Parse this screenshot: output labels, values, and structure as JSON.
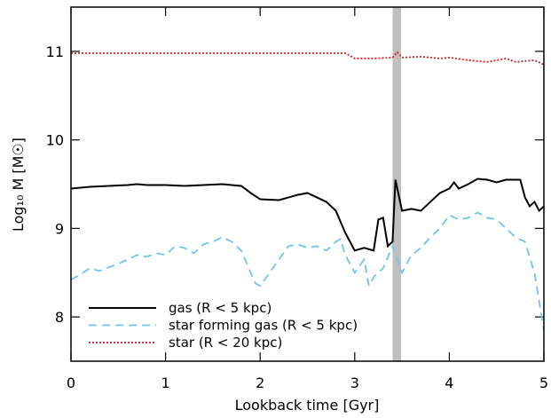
{
  "chart_data": {
    "type": "line",
    "xlabel": "Lookback time [Gyr]",
    "ylabel": "Log₁₀ M [M☉]",
    "xlim": [
      0,
      5
    ],
    "xticks": [
      0,
      1,
      2,
      3,
      4,
      5
    ],
    "ylim": [
      7.5,
      11.5
    ],
    "yticks": [
      8,
      9,
      10,
      11
    ],
    "highlight": {
      "x": [
        3.4,
        3.49
      ],
      "color": "#bfbfbf"
    },
    "legend": "lower left",
    "series": [
      {
        "name": "gas (R < 5 kpc)",
        "color": "#000000",
        "dash": "solid",
        "x": [
          0,
          0.2,
          0.4,
          0.6,
          0.7,
          0.8,
          1.0,
          1.2,
          1.4,
          1.6,
          1.8,
          1.9,
          2.0,
          2.2,
          2.4,
          2.5,
          2.6,
          2.7,
          2.8,
          2.9,
          3.0,
          3.1,
          3.2,
          3.25,
          3.3,
          3.35,
          3.4,
          3.43,
          3.5,
          3.6,
          3.7,
          3.8,
          3.9,
          4.0,
          4.05,
          4.1,
          4.2,
          4.3,
          4.4,
          4.5,
          4.6,
          4.7,
          4.75,
          4.8,
          4.85,
          4.9,
          4.95,
          5.0
        ],
        "values": [
          9.45,
          9.47,
          9.48,
          9.49,
          9.5,
          9.49,
          9.49,
          9.48,
          9.49,
          9.5,
          9.48,
          9.4,
          9.33,
          9.32,
          9.38,
          9.4,
          9.35,
          9.3,
          9.2,
          8.95,
          8.75,
          8.78,
          8.75,
          9.1,
          9.12,
          8.8,
          8.85,
          9.55,
          9.2,
          9.22,
          9.2,
          9.3,
          9.4,
          9.45,
          9.52,
          9.45,
          9.5,
          9.56,
          9.55,
          9.52,
          9.55,
          9.55,
          9.55,
          9.35,
          9.25,
          9.3,
          9.2,
          9.25
        ]
      },
      {
        "name": "star forming gas (R < 5 kpc)",
        "color": "#6ec6ee",
        "dash": "dashed",
        "x": [
          0,
          0.1,
          0.2,
          0.3,
          0.4,
          0.5,
          0.6,
          0.7,
          0.8,
          0.9,
          1.0,
          1.1,
          1.2,
          1.3,
          1.4,
          1.5,
          1.6,
          1.7,
          1.8,
          1.9,
          1.95,
          2.0,
          2.1,
          2.2,
          2.3,
          2.4,
          2.5,
          2.6,
          2.7,
          2.8,
          2.85,
          2.9,
          3.0,
          3.1,
          3.15,
          3.2,
          3.3,
          3.4,
          3.5,
          3.6,
          3.7,
          3.8,
          3.9,
          4.0,
          4.1,
          4.2,
          4.3,
          4.4,
          4.5,
          4.6,
          4.7,
          4.8,
          4.9,
          5.0
        ],
        "values": [
          8.42,
          8.48,
          8.55,
          8.52,
          8.56,
          8.6,
          8.65,
          8.7,
          8.68,
          8.72,
          8.7,
          8.8,
          8.78,
          8.72,
          8.82,
          8.85,
          8.9,
          8.85,
          8.75,
          8.5,
          8.38,
          8.35,
          8.5,
          8.65,
          8.8,
          8.82,
          8.78,
          8.8,
          8.75,
          8.85,
          8.88,
          8.7,
          8.5,
          8.65,
          8.35,
          8.45,
          8.55,
          8.8,
          8.5,
          8.7,
          8.78,
          8.9,
          9.0,
          9.15,
          9.1,
          9.12,
          9.18,
          9.12,
          9.1,
          9.0,
          8.9,
          8.85,
          8.5,
          7.85
        ]
      },
      {
        "name": "star (R < 20 kpc)",
        "color": "#cc2222",
        "dash": "dotted",
        "x": [
          0,
          1,
          2,
          2.9,
          3.0,
          3.2,
          3.4,
          3.45,
          3.5,
          3.7,
          3.9,
          4.0,
          4.2,
          4.4,
          4.6,
          4.7,
          4.9,
          5.0
        ],
        "values": [
          10.98,
          10.98,
          10.98,
          10.98,
          10.92,
          10.92,
          10.93,
          10.99,
          10.93,
          10.94,
          10.92,
          10.93,
          10.9,
          10.88,
          10.92,
          10.88,
          10.9,
          10.85
        ]
      }
    ]
  }
}
